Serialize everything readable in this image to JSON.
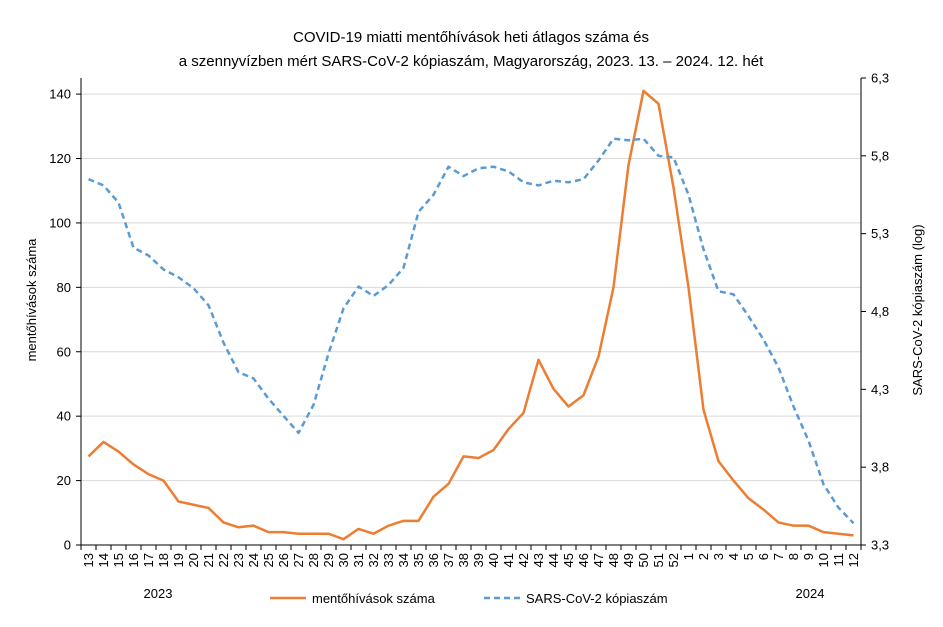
{
  "chart_data": {
    "type": "line",
    "title": [
      "COVID-19 miatti mentőhívások heti átlagos száma és",
      "a szennyvízben mért SARS-CoV-2 kópiaszám, Magyarország, 2023. 13. – 2024. 12. hét"
    ],
    "ylabel": "mentőhívások száma",
    "y2label": "SARS-CoV-2 kópiaszám (log)",
    "ylim": [
      0,
      145
    ],
    "y2lim": [
      3.3,
      6.3
    ],
    "yticks": [
      0,
      20,
      40,
      60,
      80,
      100,
      120,
      140
    ],
    "y2ticks": [
      "3,3",
      "3,8",
      "4,3",
      "4,8",
      "5,3",
      "5,8",
      "6,3"
    ],
    "y2tick_values": [
      3.3,
      3.8,
      4.3,
      4.8,
      5.3,
      5.8,
      6.3
    ],
    "categories": [
      "13",
      "14",
      "15",
      "16",
      "17",
      "18",
      "19",
      "20",
      "21",
      "22",
      "23",
      "24",
      "25",
      "26",
      "27",
      "28",
      "29",
      "30",
      "31",
      "32",
      "33",
      "34",
      "35",
      "36",
      "37",
      "38",
      "39",
      "40",
      "41",
      "42",
      "43",
      "44",
      "45",
      "46",
      "47",
      "48",
      "49",
      "50",
      "51",
      "52",
      "1",
      "2",
      "3",
      "4",
      "5",
      "6",
      "7",
      "8",
      "9",
      "10",
      "11",
      "12"
    ],
    "year_labels": [
      "2023",
      "2024"
    ],
    "legend": {
      "position": "bottom"
    },
    "colors": {
      "calls": "#ED7D31",
      "sars": "#5B9BD5",
      "grid": "#D9D9D9",
      "axis": "#000000"
    },
    "series": [
      {
        "name": "mentőhívások száma",
        "axis": "left",
        "style": "solid",
        "values": [
          27.5,
          32,
          29,
          25,
          22,
          20,
          13.5,
          12.5,
          11.5,
          7,
          5.5,
          6,
          4,
          4,
          3.5,
          3.5,
          3.5,
          1.8,
          5,
          3.5,
          6,
          7.5,
          7.5,
          15,
          19,
          27.5,
          27,
          29.5,
          36,
          41,
          57.5,
          48.5,
          43,
          46.5,
          58.5,
          80,
          118,
          141,
          137,
          111,
          80,
          42,
          26,
          20,
          14.5,
          11,
          7,
          6,
          6,
          4,
          3.5,
          3
        ]
      },
      {
        "name": "SARS-CoV-2 kópiaszám",
        "axis": "right",
        "style": "dashed",
        "values": [
          5.65,
          5.61,
          5.5,
          5.21,
          5.16,
          5.07,
          5.02,
          4.95,
          4.84,
          4.6,
          4.41,
          4.37,
          4.24,
          4.13,
          4.02,
          4.2,
          4.53,
          4.82,
          4.96,
          4.9,
          4.97,
          5.08,
          5.44,
          5.55,
          5.73,
          5.67,
          5.72,
          5.73,
          5.7,
          5.63,
          5.61,
          5.64,
          5.63,
          5.65,
          5.77,
          5.91,
          5.9,
          5.91,
          5.8,
          5.79,
          5.55,
          5.2,
          4.93,
          4.91,
          4.77,
          4.62,
          4.44,
          4.19,
          3.97,
          3.69,
          3.54,
          3.44
        ]
      }
    ]
  }
}
